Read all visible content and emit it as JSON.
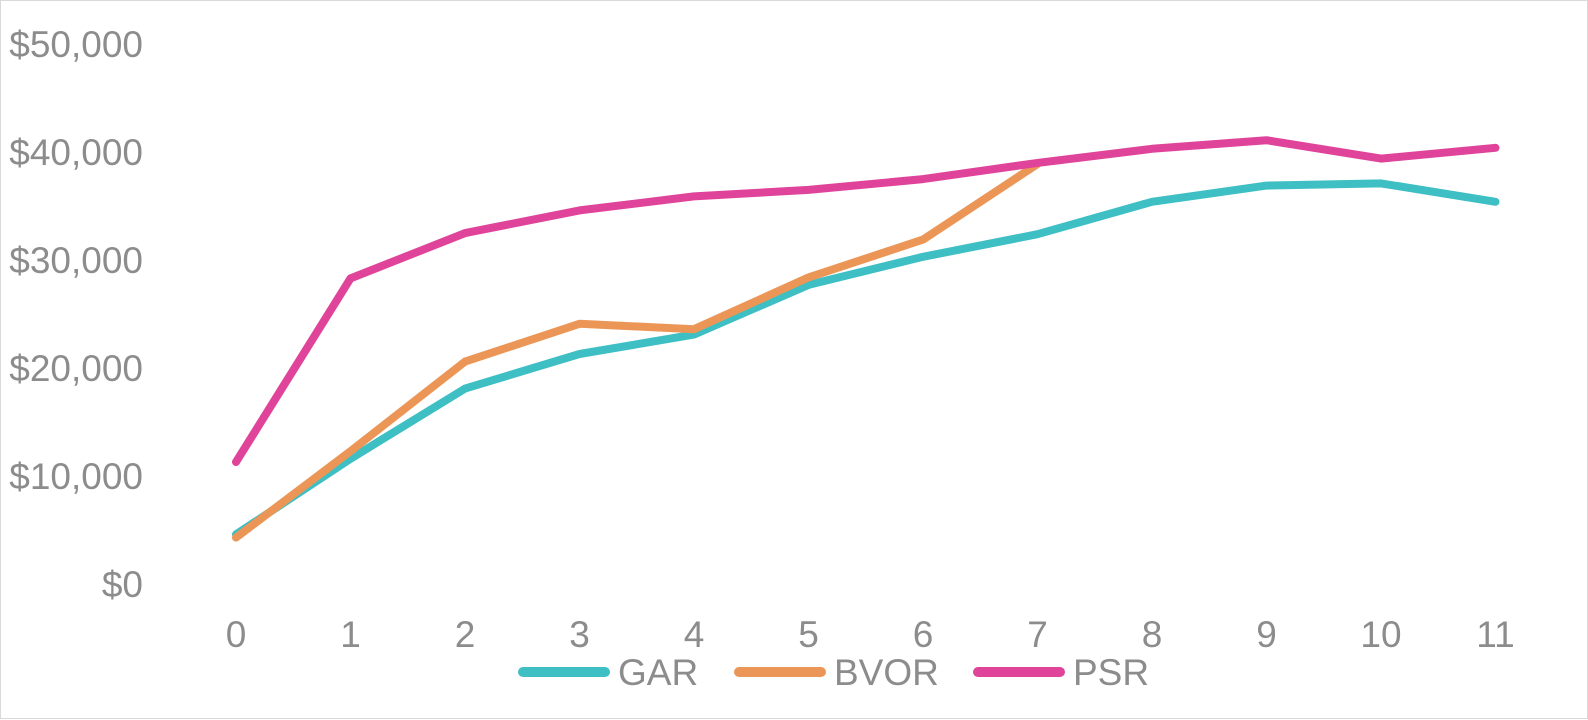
{
  "chart_data": {
    "type": "line",
    "title": "",
    "xlabel": "",
    "ylabel": "",
    "x": [
      0,
      1,
      2,
      3,
      4,
      5,
      6,
      7,
      8,
      9,
      10,
      11
    ],
    "x_tick_labels": [
      "0",
      "1",
      "2",
      "3",
      "4",
      "5",
      "6",
      "7",
      "8",
      "9",
      "10",
      "11"
    ],
    "y_tick_labels": [
      "$0",
      "$10,000",
      "$20,000",
      "$30,000",
      "$40,000",
      "$50,000"
    ],
    "ylim": [
      0,
      50000
    ],
    "grid": false,
    "legend_position": "bottom",
    "series": [
      {
        "name": "GAR",
        "color": "#3dbfc4",
        "values": [
          4500,
          11500,
          18000,
          21200,
          23000,
          27600,
          30200,
          32300,
          35300,
          36800,
          37000,
          35300
        ]
      },
      {
        "name": "BVOR",
        "color": "#eb9656",
        "values": [
          4200,
          12200,
          20500,
          24000,
          23500,
          28300,
          31800,
          38800,
          null,
          null,
          null,
          null
        ]
      },
      {
        "name": "PSR",
        "color": "#e0449a",
        "values": [
          11200,
          28200,
          32400,
          34500,
          35800,
          36400,
          37400,
          38900,
          40200,
          41000,
          39300,
          40300
        ]
      }
    ]
  }
}
